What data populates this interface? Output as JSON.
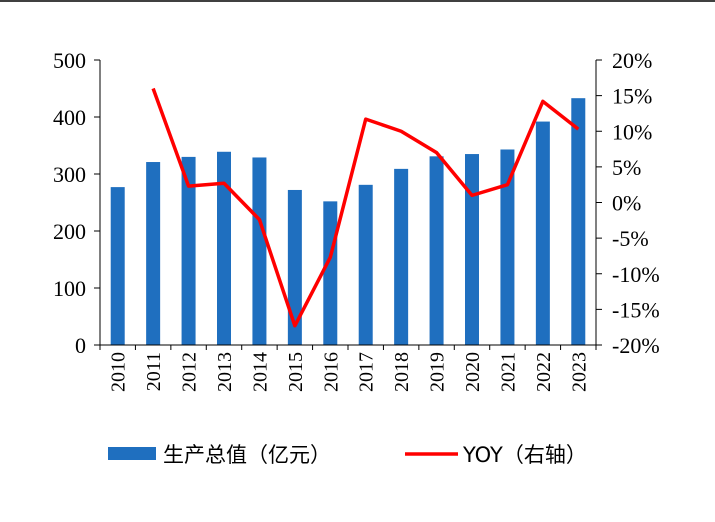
{
  "chart_data": {
    "type": "bar+line",
    "categories": [
      "2010",
      "2011",
      "2012",
      "2013",
      "2014",
      "2015",
      "2016",
      "2017",
      "2018",
      "2019",
      "2020",
      "2021",
      "2022",
      "2023"
    ],
    "series": [
      {
        "name": "生产总值（亿元）",
        "type": "bar",
        "axis": "left",
        "color": "#1f6fbf",
        "values": [
          277,
          321,
          330,
          339,
          329,
          272,
          252,
          281,
          309,
          331,
          335,
          343,
          392,
          433
        ]
      },
      {
        "name": "YOY（右轴）",
        "type": "line",
        "axis": "right",
        "color": "#ff0000",
        "values": [
          null,
          16,
          2.3,
          2.7,
          -2.4,
          -17.3,
          -7.7,
          11.7,
          10.0,
          7.0,
          1.0,
          2.5,
          14.2,
          10.3
        ]
      }
    ],
    "y_left": {
      "ylim": [
        0,
        500
      ],
      "ticks": [
        "0",
        "100",
        "200",
        "300",
        "400",
        "500"
      ]
    },
    "y_right": {
      "ylim": [
        -20,
        20
      ],
      "ticks": [
        "-20%",
        "-15%",
        "-10%",
        "-5%",
        "0%",
        "5%",
        "10%",
        "15%",
        "20%"
      ]
    },
    "legend": {
      "position": "bottom"
    },
    "grid": false
  }
}
